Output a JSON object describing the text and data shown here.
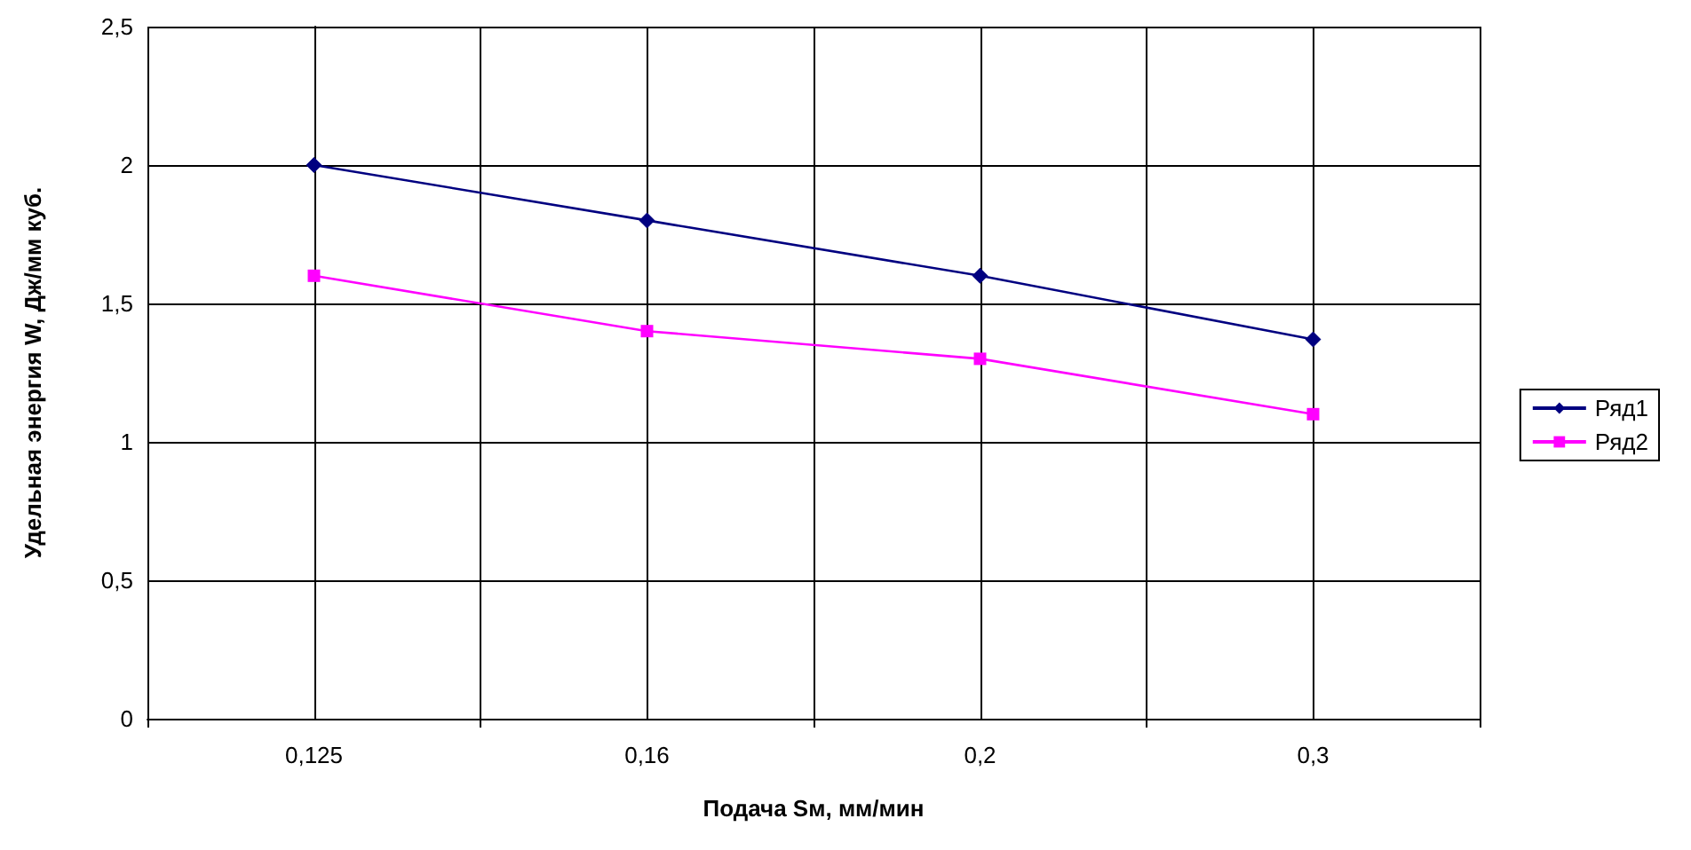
{
  "chart_data": {
    "type": "line",
    "xlabel": "Подача Sм, мм/мин",
    "ylabel": "Удельная энергия W, Дж/мм куб.",
    "categories": [
      "0,125",
      "0,16",
      "0,2",
      "0,3"
    ],
    "series": [
      {
        "name": "Ряд1",
        "color": "#000080",
        "marker": "diamond",
        "values": [
          2.0,
          1.8,
          1.6,
          1.37
        ]
      },
      {
        "name": "Ряд2",
        "color": "#ff00ff",
        "marker": "square",
        "values": [
          1.6,
          1.4,
          1.3,
          1.1
        ]
      }
    ],
    "ylim": [
      0,
      2.5
    ],
    "yticks": [
      0,
      {
        "value": 0.5,
        "label": "0,5"
      },
      1,
      {
        "value": 1.5,
        "label": "1,5"
      },
      2,
      {
        "value": 2.5,
        "label": "2,5"
      }
    ],
    "grid": true,
    "legend": "right",
    "line_style": "solid"
  }
}
